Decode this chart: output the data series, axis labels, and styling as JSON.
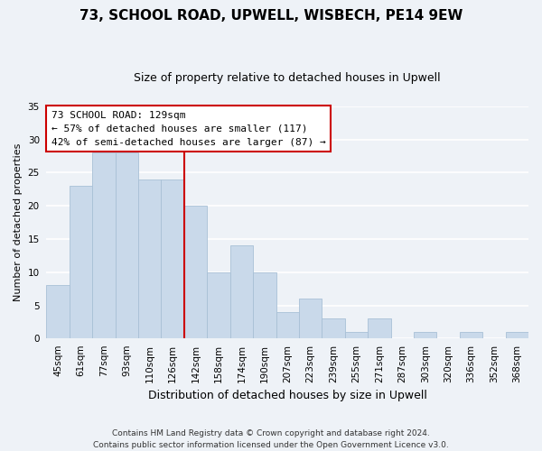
{
  "title": "73, SCHOOL ROAD, UPWELL, WISBECH, PE14 9EW",
  "subtitle": "Size of property relative to detached houses in Upwell",
  "bar_labels": [
    "45sqm",
    "61sqm",
    "77sqm",
    "93sqm",
    "110sqm",
    "126sqm",
    "142sqm",
    "158sqm",
    "174sqm",
    "190sqm",
    "207sqm",
    "223sqm",
    "239sqm",
    "255sqm",
    "271sqm",
    "287sqm",
    "303sqm",
    "320sqm",
    "336sqm",
    "352sqm",
    "368sqm"
  ],
  "bar_heights": [
    8,
    23,
    28,
    28,
    24,
    24,
    20,
    10,
    14,
    10,
    4,
    6,
    3,
    1,
    3,
    0,
    1,
    0,
    1,
    0,
    1
  ],
  "bar_color": "#c9d9ea",
  "bar_edge_color": "#a8c0d6",
  "vline_x": 5.5,
  "vline_color": "#cc0000",
  "ylabel": "Number of detached properties",
  "xlabel": "Distribution of detached houses by size in Upwell",
  "ylim": [
    0,
    35
  ],
  "yticks": [
    0,
    5,
    10,
    15,
    20,
    25,
    30,
    35
  ],
  "annotation_title": "73 SCHOOL ROAD: 129sqm",
  "annotation_line1": "← 57% of detached houses are smaller (117)",
  "annotation_line2": "42% of semi-detached houses are larger (87) →",
  "annotation_box_color": "#ffffff",
  "annotation_box_edge": "#cc0000",
  "footer_line1": "Contains HM Land Registry data © Crown copyright and database right 2024.",
  "footer_line2": "Contains public sector information licensed under the Open Government Licence v3.0.",
  "background_color": "#eef2f7",
  "grid_color": "#ffffff",
  "title_fontsize": 11,
  "subtitle_fontsize": 9,
  "ylabel_fontsize": 8,
  "xlabel_fontsize": 9,
  "tick_fontsize": 7.5,
  "annotation_fontsize": 8,
  "footer_fontsize": 6.5
}
